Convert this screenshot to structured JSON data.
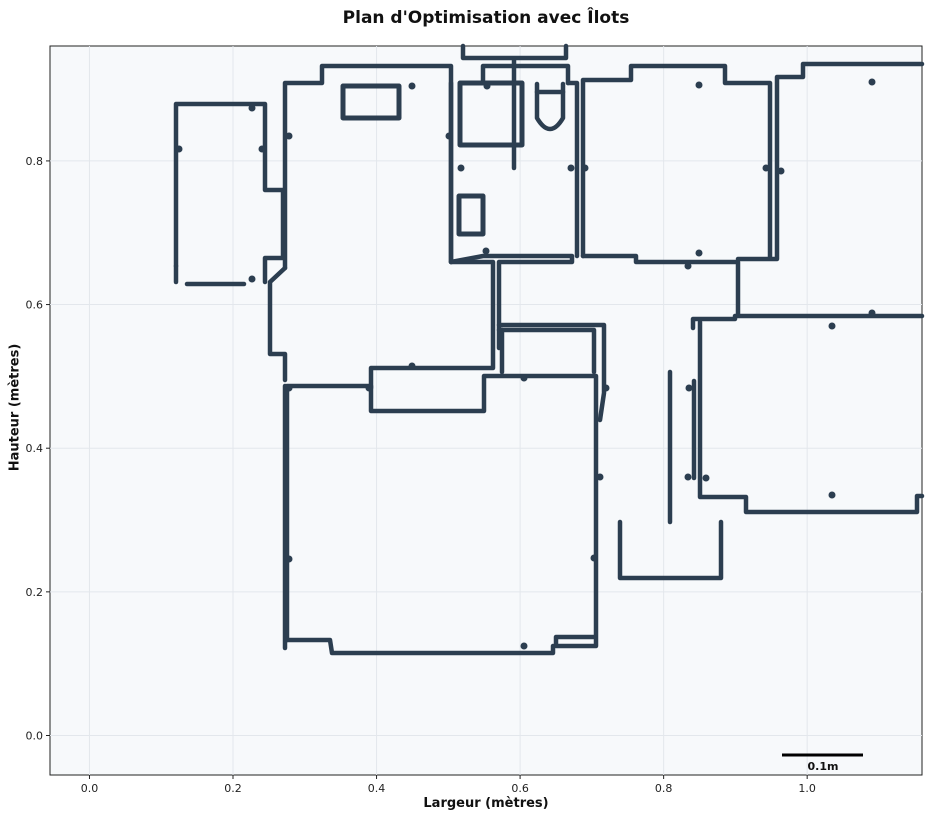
{
  "chart_data": {
    "type": "floor-plan",
    "title": "Plan d'Optimisation avec Îlots",
    "xlabel": "Largeur (mètres)",
    "ylabel": "Hauteur (mètres)",
    "xlim": [
      -0.055,
      1.16
    ],
    "ylim": [
      -0.055,
      0.96
    ],
    "x_ticks": [
      "0.0",
      "0.2",
      "0.4",
      "0.6",
      "0.8",
      "1.0"
    ],
    "y_ticks": [
      "0.0",
      "0.2",
      "0.4",
      "0.6",
      "0.8"
    ],
    "grid": true,
    "scale_bar_label": "0.1m",
    "wall_color": "#2c3e50",
    "plot_background": "#f7f9fb"
  }
}
